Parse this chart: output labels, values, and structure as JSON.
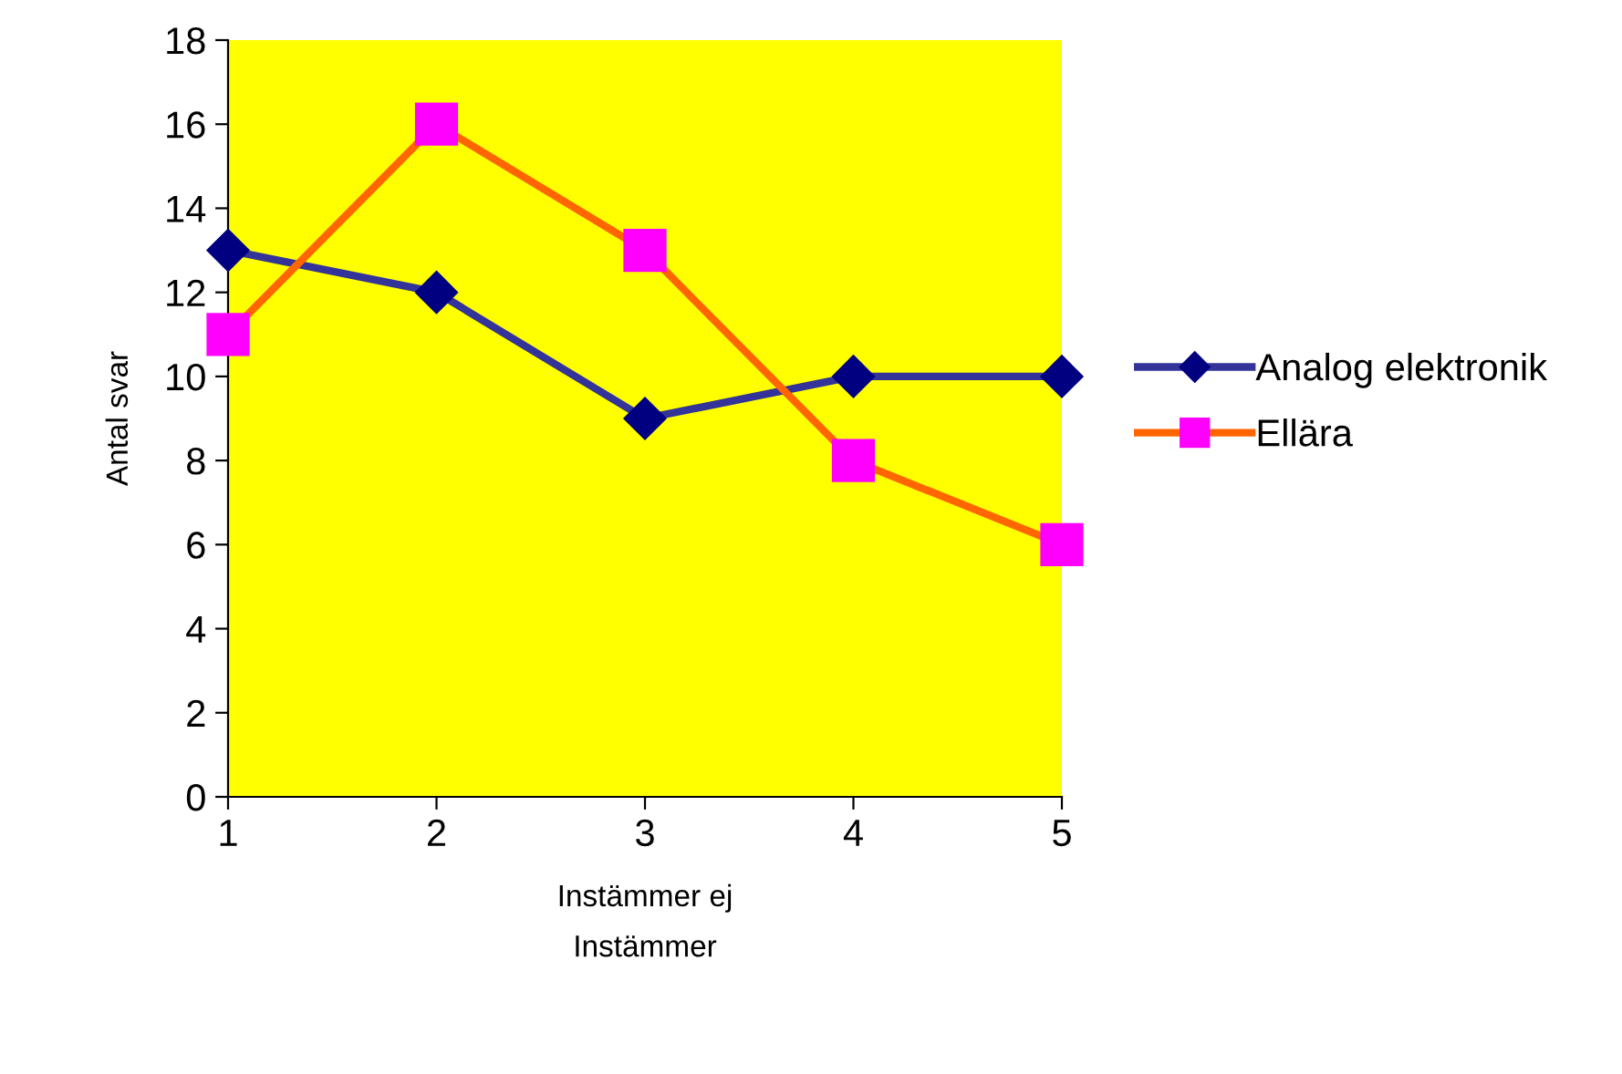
{
  "chart_data": {
    "type": "line",
    "xlabel": "Instämmer ej\nInstämmer",
    "ylabel": "Antal svar",
    "x": [
      1,
      2,
      3,
      4,
      5
    ],
    "xlim": [
      1,
      5
    ],
    "xticks": [
      1,
      2,
      3,
      4,
      5
    ],
    "ylim": [
      0,
      18
    ],
    "yticks": [
      0,
      2,
      4,
      6,
      8,
      10,
      12,
      14,
      16,
      18
    ],
    "series": [
      {
        "name": "Analog elektronik",
        "color": "#333399",
        "colors": [
          "#000080",
          "#000080",
          "#000080",
          "#000080",
          "#000080"
        ],
        "marker": "diamond",
        "values": [
          13,
          12,
          9,
          10,
          10
        ]
      },
      {
        "name": "Ellära",
        "color": "#ff6600",
        "colors": [
          "#ff00ff",
          "#ff00ff",
          "#ff00ff",
          "#ff00ff",
          "#ff00ff"
        ],
        "marker": "square",
        "values": [
          11,
          16,
          13,
          8,
          6
        ]
      }
    ],
    "grid": false,
    "legend": "right",
    "line_style": "solid"
  }
}
